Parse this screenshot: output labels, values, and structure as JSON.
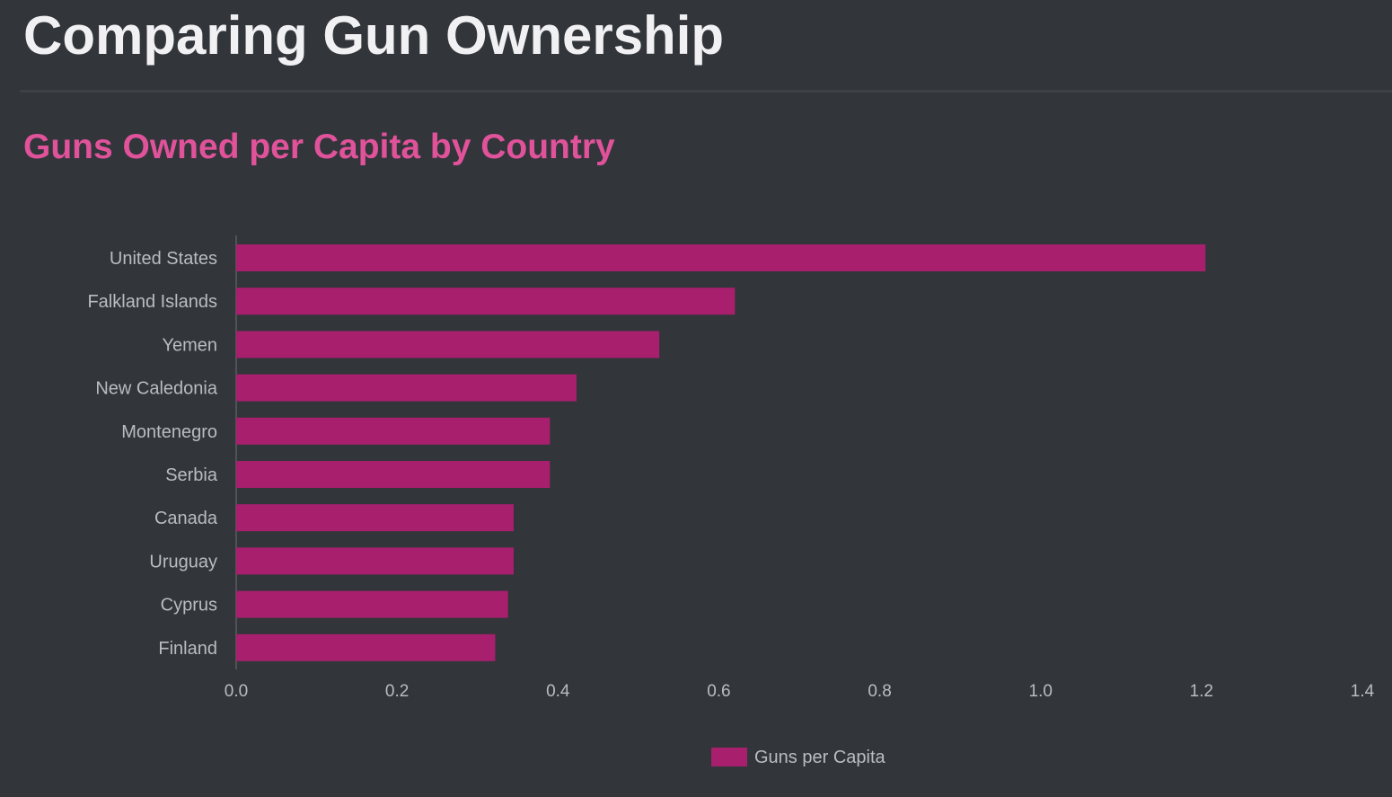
{
  "page": {
    "title": "Comparing Gun Ownership"
  },
  "colors": {
    "background": "#32353a",
    "bar": "#a81f6e",
    "title": "#f1f1f3",
    "chart_title": "#e0529a",
    "text": "#b9bcc1"
  },
  "chart_data": {
    "type": "bar",
    "orientation": "horizontal",
    "title": "Guns Owned per Capita by Country",
    "categories": [
      "United States",
      "Falkland Islands",
      "Yemen",
      "New Caledonia",
      "Montenegro",
      "Serbia",
      "Canada",
      "Uruguay",
      "Cyprus",
      "Finland"
    ],
    "series": [
      {
        "name": "Guns per Capita",
        "values": [
          1.205,
          0.62,
          0.526,
          0.423,
          0.39,
          0.39,
          0.345,
          0.345,
          0.338,
          0.322
        ]
      }
    ],
    "xlim": [
      0,
      1.4
    ],
    "x_ticks": [
      "0.0",
      "0.2",
      "0.4",
      "0.6",
      "0.8",
      "1.0",
      "1.2",
      "1.4"
    ],
    "grid": false,
    "legend_position": "bottom"
  }
}
